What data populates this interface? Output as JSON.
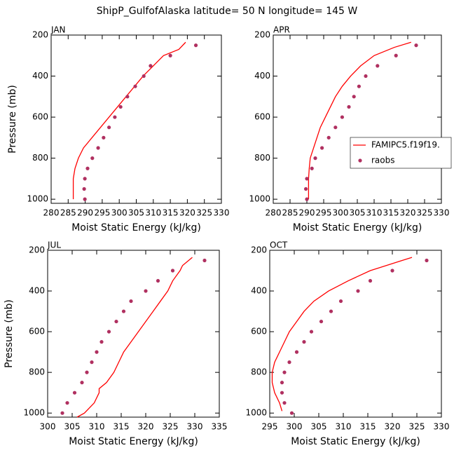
{
  "title": "ShipP_GulfofAlaska  latitude= 50 N longitude= 145 W",
  "chart_data": [
    {
      "type": "line",
      "title": "JAN",
      "xlabel": "Moist Static Energy (kJ/kg)",
      "ylabel": "Pressure (mb)",
      "xlim": [
        280,
        330
      ],
      "ylim": [
        1020,
        200
      ],
      "xticks": [
        280,
        285,
        290,
        295,
        300,
        305,
        310,
        315,
        320,
        325,
        330
      ],
      "yticks": [
        200,
        400,
        600,
        800,
        1000
      ],
      "series": [
        {
          "mode": "lines",
          "color": "#ff0000",
          "x": [
            286.5,
            286.5,
            286.5,
            287,
            288,
            289.5,
            292,
            294.5,
            297,
            299.5,
            302,
            304.5,
            307,
            310,
            313,
            317.5,
            319.5
          ],
          "y": [
            1000,
            950,
            900,
            850,
            800,
            750,
            700,
            650,
            600,
            550,
            500,
            450,
            400,
            350,
            300,
            270,
            235
          ]
        },
        {
          "mode": "markers",
          "color": "#b03060",
          "x": [
            289.9,
            289.7,
            289.9,
            290.7,
            292.1,
            293.8,
            295.4,
            297,
            298.7,
            300.4,
            302.4,
            304.7,
            307.2,
            309.2,
            315,
            322.5
          ],
          "y": [
            1000,
            950,
            900,
            850,
            800,
            750,
            700,
            650,
            600,
            550,
            500,
            450,
            400,
            350,
            300,
            250
          ]
        }
      ]
    },
    {
      "type": "line",
      "title": "APR",
      "xlabel": "Moist Static Energy (kJ/kg)",
      "xlim": [
        280,
        330
      ],
      "ylim": [
        1020,
        200
      ],
      "xticks": [
        280,
        285,
        290,
        295,
        300,
        305,
        310,
        315,
        320,
        325,
        330
      ],
      "yticks": [
        200,
        400,
        600,
        800,
        1000
      ],
      "legend": "right",
      "series": [
        {
          "name": "FAMIPC5.f19f19.",
          "mode": "lines",
          "color": "#ff0000",
          "x": [
            290.5,
            290.5,
            290.5,
            290.7,
            291,
            292,
            293,
            294,
            295.5,
            297,
            298.5,
            300.5,
            303,
            306,
            310,
            316,
            321
          ],
          "y": [
            1000,
            950,
            900,
            850,
            800,
            750,
            700,
            650,
            600,
            550,
            500,
            450,
            400,
            350,
            300,
            260,
            235
          ]
        },
        {
          "name": "raobs",
          "mode": "markers",
          "color": "#b03060",
          "x": [
            290,
            289.7,
            290,
            291.5,
            292.5,
            294.5,
            296.5,
            298.5,
            300.5,
            302.5,
            304,
            305.5,
            307.5,
            311,
            316.5,
            322.5
          ],
          "y": [
            1000,
            950,
            900,
            850,
            800,
            750,
            700,
            650,
            600,
            550,
            500,
            450,
            400,
            350,
            300,
            250
          ]
        }
      ]
    },
    {
      "type": "line",
      "title": "JUL",
      "xlabel": "Moist Static Energy (kJ/kg)",
      "ylabel": "Pressure (mb)",
      "xlim": [
        300,
        335
      ],
      "ylim": [
        1020,
        200
      ],
      "xticks": [
        300,
        305,
        310,
        315,
        320,
        325,
        330,
        335
      ],
      "yticks": [
        200,
        400,
        600,
        800,
        1000
      ],
      "series": [
        {
          "mode": "lines",
          "color": "#ff0000",
          "x": [
            306,
            307.5,
            309.5,
            310.5,
            310.5,
            312,
            313.5,
            314.5,
            315.5,
            317,
            318.5,
            320,
            321.5,
            323,
            324.5,
            325.5,
            327,
            327.5,
            329.5
          ],
          "y": [
            1020,
            1000,
            950,
            900,
            880,
            850,
            800,
            750,
            700,
            650,
            600,
            550,
            500,
            450,
            400,
            350,
            300,
            275,
            235
          ]
        },
        {
          "mode": "markers",
          "color": "#b03060",
          "x": [
            303,
            304,
            305.5,
            307,
            308,
            309,
            310,
            311,
            312.5,
            314,
            315.5,
            317,
            320,
            322.5,
            325.5,
            332
          ],
          "y": [
            1000,
            950,
            900,
            850,
            800,
            750,
            700,
            650,
            600,
            550,
            500,
            450,
            400,
            350,
            300,
            250
          ]
        }
      ]
    },
    {
      "type": "line",
      "title": "OCT",
      "xlabel": "Moist Static Energy (kJ/kg)",
      "xlim": [
        295,
        330
      ],
      "ylim": [
        1020,
        200
      ],
      "xticks": [
        295,
        300,
        305,
        310,
        315,
        320,
        325,
        330
      ],
      "yticks": [
        200,
        400,
        600,
        800,
        1000
      ],
      "series": [
        {
          "mode": "lines",
          "color": "#ff0000",
          "x": [
            297.5,
            297,
            296,
            295.5,
            295.5,
            296,
            297,
            298,
            299,
            300.5,
            302,
            304,
            307,
            311,
            315.5,
            322,
            324
          ],
          "y": [
            990,
            950,
            900,
            850,
            800,
            750,
            700,
            650,
            600,
            550,
            500,
            450,
            400,
            350,
            300,
            250,
            235
          ]
        },
        {
          "mode": "markers",
          "color": "#b03060",
          "x": [
            299.5,
            298,
            297.5,
            297.5,
            298,
            299,
            300.5,
            302,
            303.5,
            305.5,
            307.5,
            309.5,
            313,
            315.5,
            320,
            327
          ],
          "y": [
            1000,
            950,
            900,
            850,
            800,
            750,
            700,
            650,
            600,
            550,
            500,
            450,
            400,
            350,
            300,
            250
          ]
        }
      ]
    }
  ]
}
